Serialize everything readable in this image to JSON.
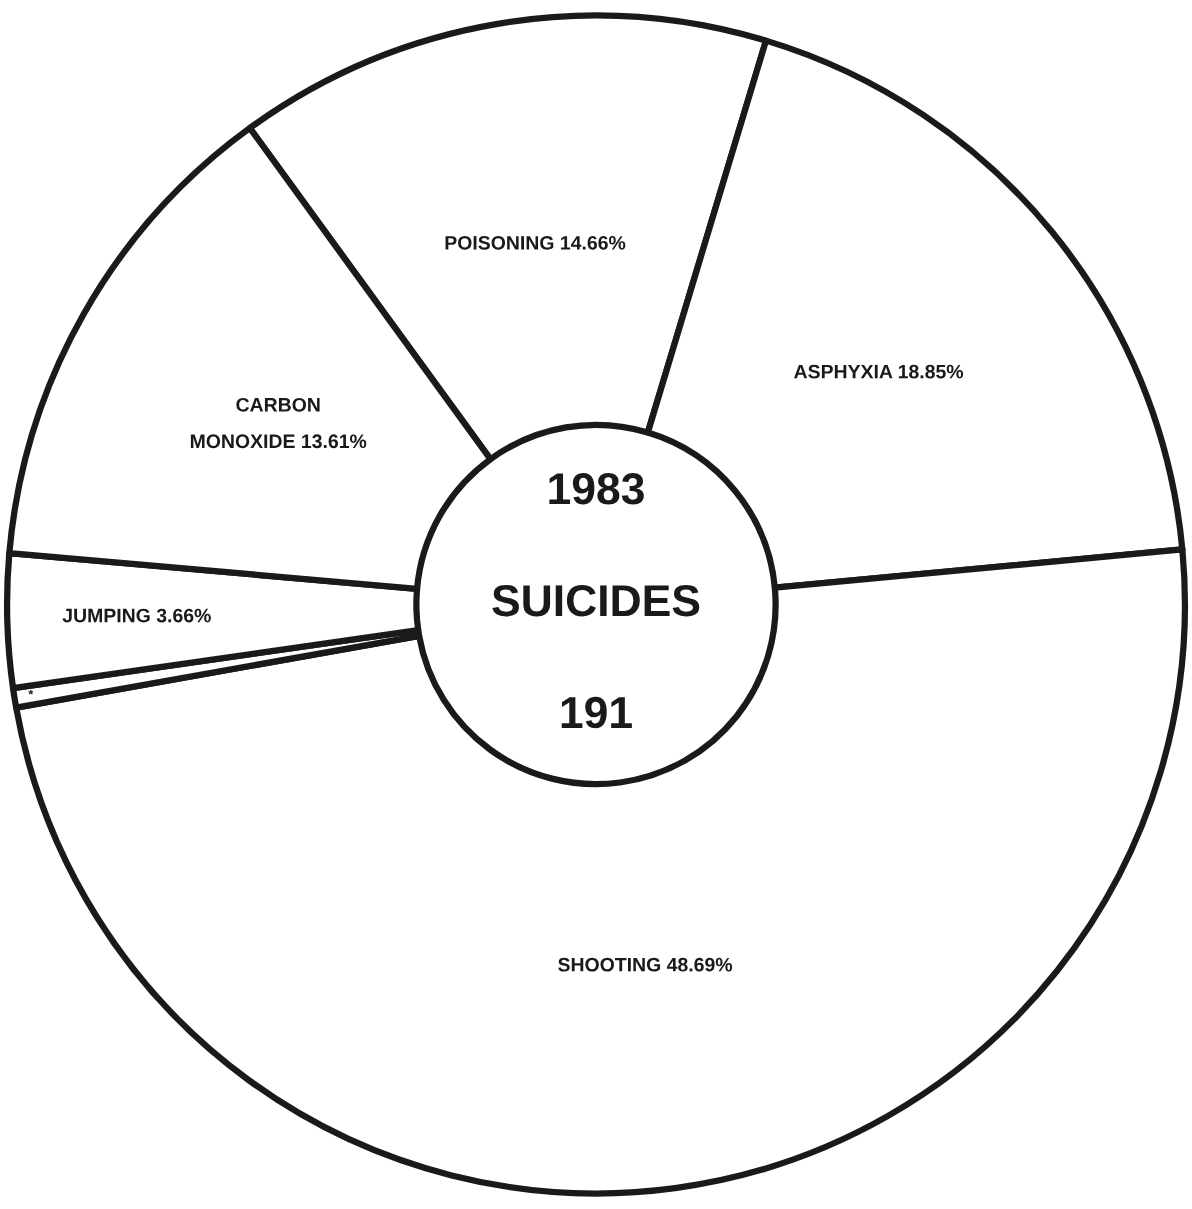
{
  "chart_data": {
    "type": "donut",
    "categories": [
      "POISONING",
      "ASPHYXIA",
      "SHOOTING",
      "*",
      "JUMPING",
      "CARBON\nMONOXIDE"
    ],
    "values": [
      14.66,
      18.85,
      48.69,
      0.53,
      3.66,
      13.61
    ],
    "value_labels": [
      "14.66%",
      "18.85%",
      "48.69%",
      null,
      "3.66%",
      "13.61%"
    ],
    "colors": [
      "#ffffff",
      "#ffffff",
      "#ffffff",
      "#ffffff",
      "#ffffff",
      "#ffffff"
    ],
    "annotations": [
      "1983",
      "SUICIDES",
      "191"
    ]
  }
}
